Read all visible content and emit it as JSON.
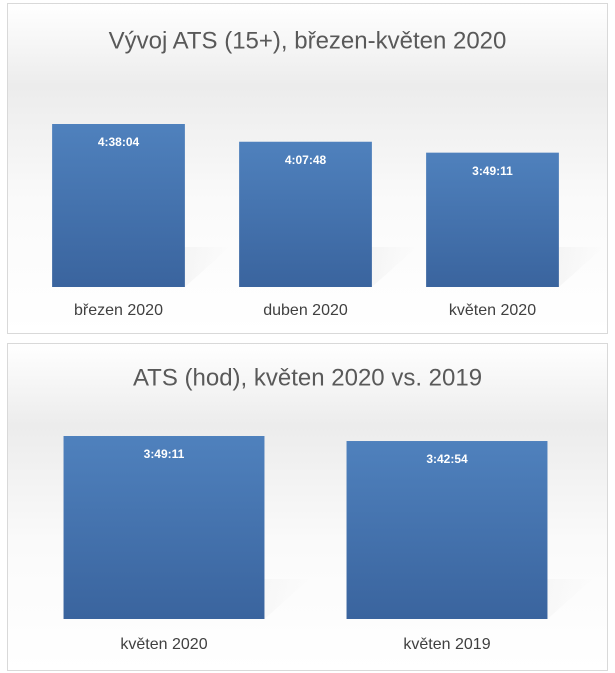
{
  "chart_data": [
    {
      "type": "bar",
      "title": "Vývoj ATS (15+), březen-květen 2020",
      "categories": [
        "březen 2020",
        "duben 2020",
        "květen 2020"
      ],
      "values": [
        16684,
        14868,
        13751
      ],
      "value_labels": [
        "4:38:04",
        "4:07:48",
        "3:49:11"
      ],
      "color": "#4f81bd"
    },
    {
      "type": "bar",
      "title": "ATS (hod), květen 2020 vs. 2019",
      "categories": [
        "květen 2020",
        "květen 2019"
      ],
      "values": [
        13751,
        13374
      ],
      "value_labels": [
        "3:49:11",
        "3:42:54"
      ],
      "color": "#4f81bd"
    }
  ]
}
